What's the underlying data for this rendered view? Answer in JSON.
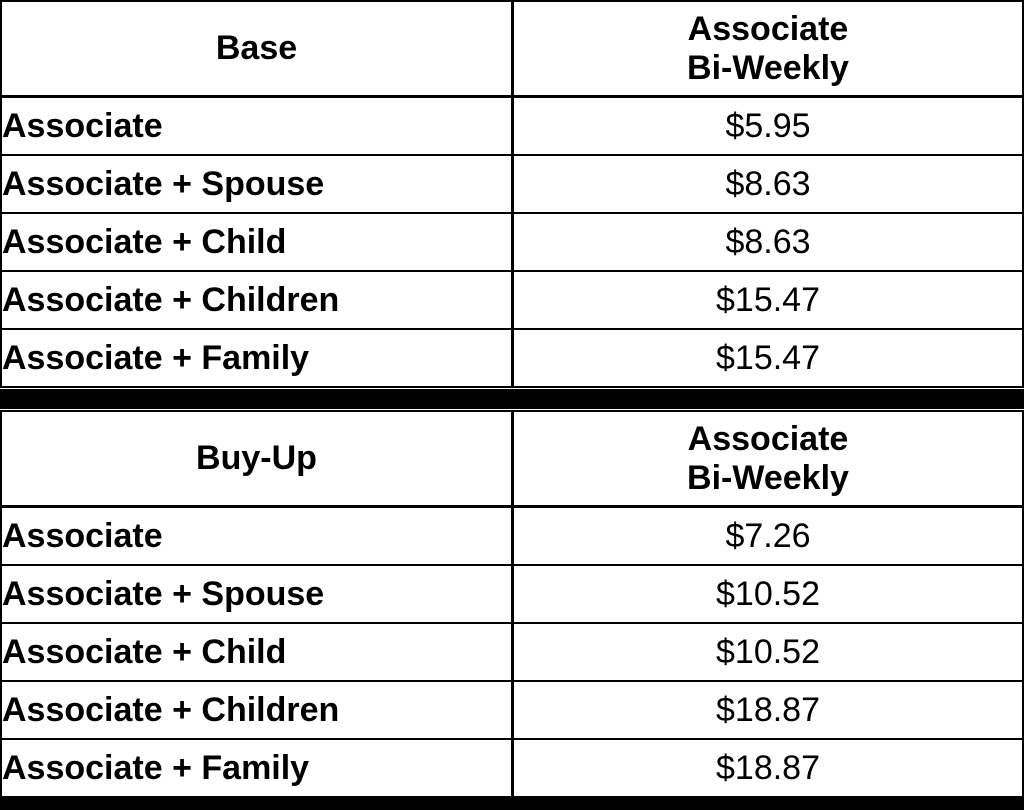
{
  "divider_color": "#000000",
  "border_color": "#000000",
  "tables": [
    {
      "title": "Base",
      "rate_header_line1": "Associate",
      "rate_header_line2": "Bi-Weekly",
      "rows": [
        {
          "label": "Associate",
          "value": "$5.95"
        },
        {
          "label": "Associate + Spouse",
          "value": "$8.63"
        },
        {
          "label": "Associate + Child",
          "value": "$8.63"
        },
        {
          "label": "Associate + Children",
          "value": "$15.47"
        },
        {
          "label": "Associate + Family",
          "value": "$15.47"
        }
      ]
    },
    {
      "title": "Buy-Up",
      "rate_header_line1": "Associate",
      "rate_header_line2": "Bi-Weekly",
      "rows": [
        {
          "label": "Associate",
          "value": "$7.26"
        },
        {
          "label": "Associate + Spouse",
          "value": "$10.52"
        },
        {
          "label": "Associate + Child",
          "value": "$10.52"
        },
        {
          "label": "Associate + Children",
          "value": "$18.87"
        },
        {
          "label": "Associate + Family",
          "value": "$18.87"
        }
      ]
    }
  ]
}
